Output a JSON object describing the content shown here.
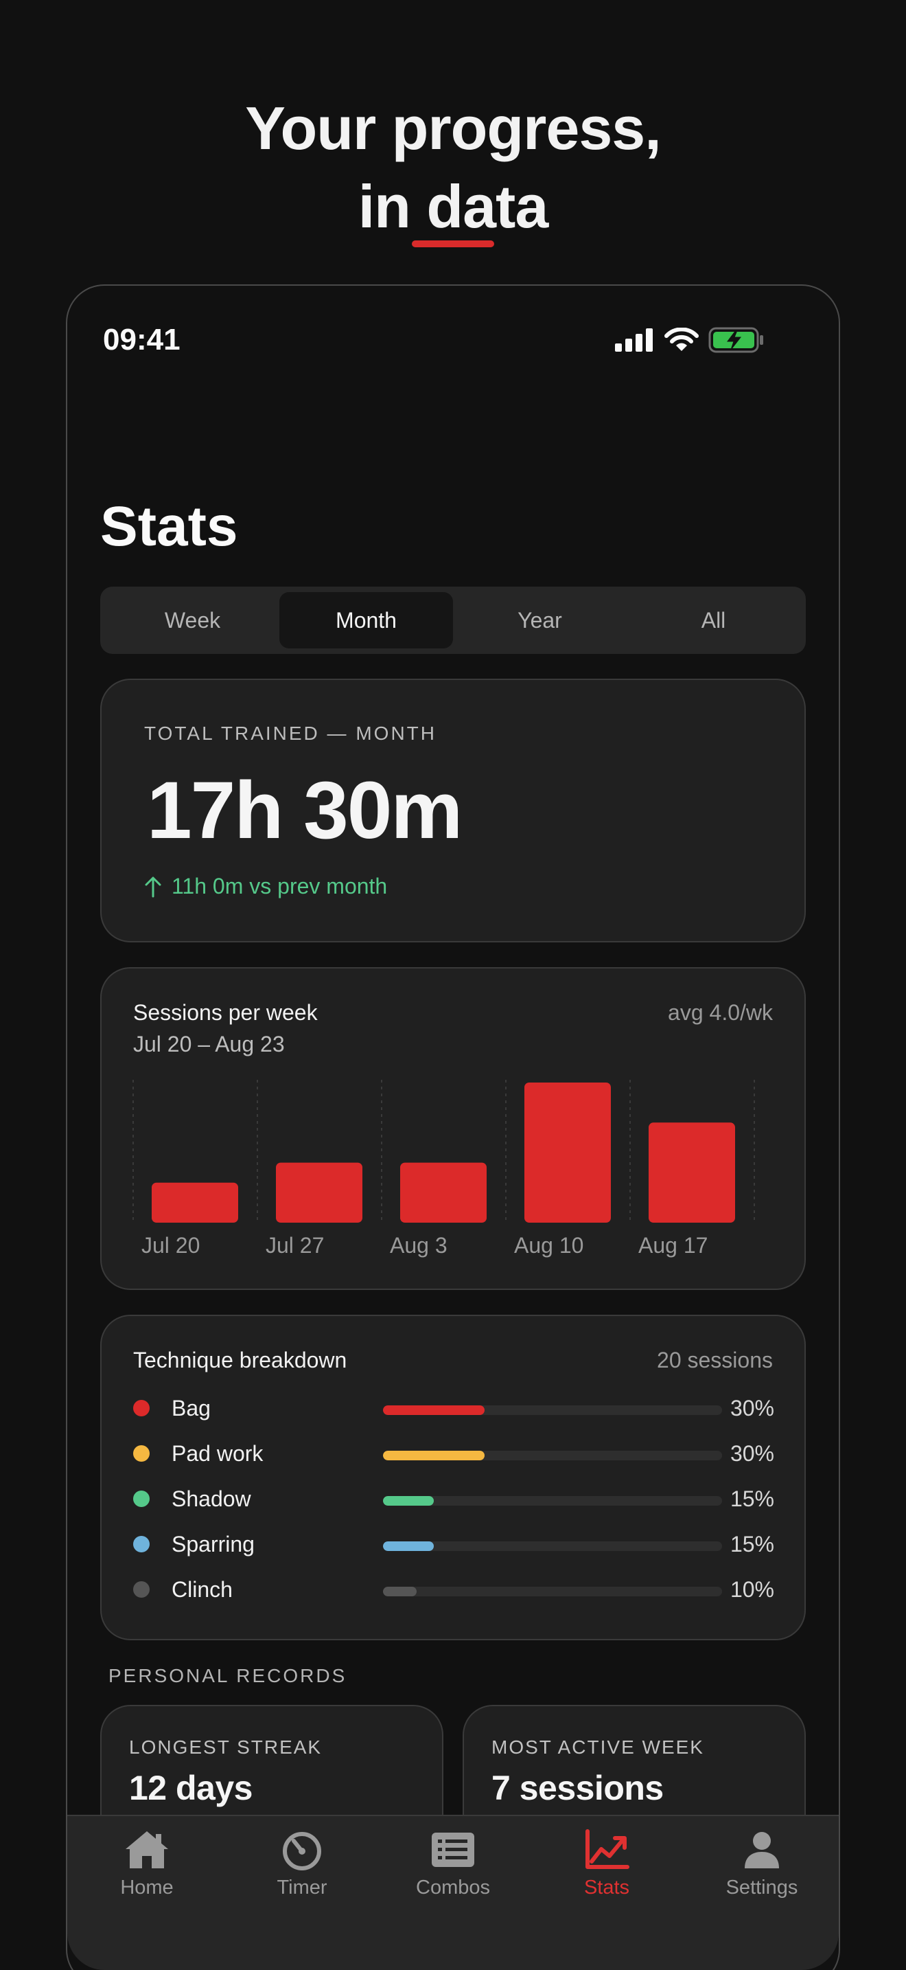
{
  "headline": {
    "line1": "Your progress,",
    "line2": "in data"
  },
  "status_bar": {
    "time": "09:41"
  },
  "page": {
    "title": "Stats"
  },
  "segments": {
    "items": [
      "Week",
      "Month",
      "Year",
      "All"
    ],
    "selected": "Month"
  },
  "total": {
    "label": "TOTAL TRAINED — MONTH",
    "value": "17h 30m",
    "delta": "11h 0m vs prev month",
    "delta_color": "#55c98a"
  },
  "chart": {
    "title": "Sessions per week",
    "range": "Jul 20 – Aug 23",
    "avg": "avg 4.0/wk"
  },
  "chart_data": {
    "type": "bar",
    "categories": [
      "Jul 20",
      "Jul 27",
      "Aug 3",
      "Aug 10",
      "Aug 17"
    ],
    "values": [
      2,
      3,
      3,
      7,
      5
    ],
    "color": "#dc2a2a",
    "ylim": [
      0,
      7
    ],
    "grid": "vertical dashed"
  },
  "technique": {
    "title": "Technique breakdown",
    "count": "20 sessions",
    "items": [
      {
        "name": "Bag",
        "pct": "30%",
        "fraction": 0.3,
        "color": "#dc2a2a"
      },
      {
        "name": "Pad work",
        "pct": "30%",
        "fraction": 0.3,
        "color": "#f5b841"
      },
      {
        "name": "Shadow",
        "pct": "15%",
        "fraction": 0.15,
        "color": "#55c98a"
      },
      {
        "name": "Sparring",
        "pct": "15%",
        "fraction": 0.15,
        "color": "#6fb3dc"
      },
      {
        "name": "Clinch",
        "pct": "10%",
        "fraction": 0.1,
        "color": "#555555"
      }
    ]
  },
  "records": {
    "label": "PERSONAL RECORDS",
    "items": [
      {
        "label": "LONGEST STREAK",
        "value": "12 days"
      },
      {
        "label": "MOST ACTIVE WEEK",
        "value": "7 sessions"
      }
    ]
  },
  "tabbar": {
    "items": [
      {
        "label": "Home",
        "icon": "home-icon"
      },
      {
        "label": "Timer",
        "icon": "timer-icon"
      },
      {
        "label": "Combos",
        "icon": "list-icon"
      },
      {
        "label": "Stats",
        "icon": "chart-icon"
      },
      {
        "label": "Settings",
        "icon": "person-icon"
      }
    ],
    "active": "Stats",
    "active_color": "#e03131",
    "inactive_color": "#9a9a9a"
  }
}
